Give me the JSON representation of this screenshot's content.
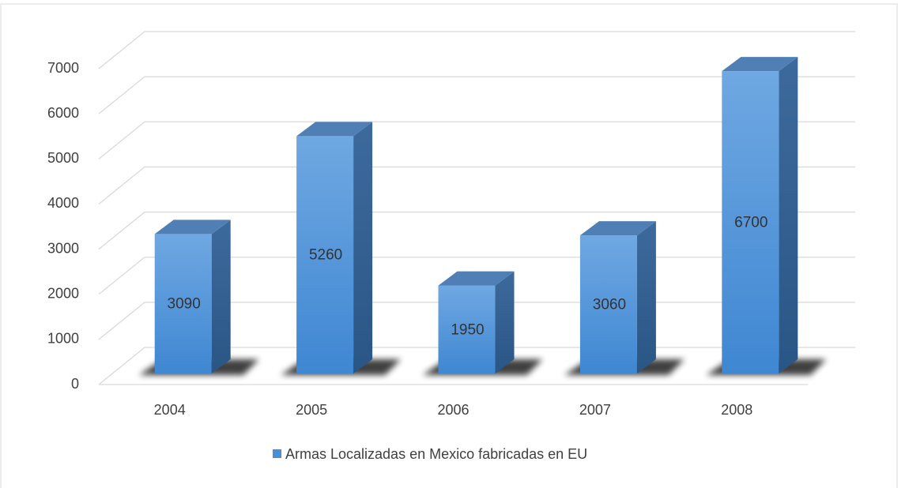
{
  "chart_data": {
    "type": "bar3d",
    "categories": [
      "2004",
      "2005",
      "2006",
      "2007",
      "2008"
    ],
    "series": [
      {
        "name": "Armas Localizadas en Mexico fabricadas en EU",
        "color": "#4a8fd6",
        "values": [
          3090,
          5260,
          1950,
          3060,
          6700
        ]
      }
    ],
    "ylim": [
      0,
      7000
    ],
    "yticks": [
      0,
      1000,
      2000,
      3000,
      4000,
      5000,
      6000,
      7000
    ],
    "grid": true,
    "legend": "bottom"
  }
}
